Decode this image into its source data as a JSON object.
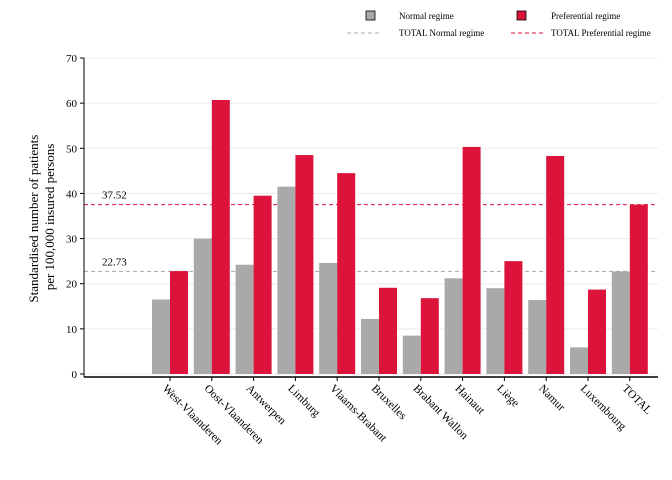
{
  "chart_data": {
    "type": "bar",
    "ylabel_lines": [
      "Standardised number of patients",
      "per 100,000 insured persons"
    ],
    "ylim": [
      0,
      70
    ],
    "yticks": [
      0,
      10,
      20,
      30,
      40,
      50,
      60,
      70
    ],
    "grid": true,
    "legend_placement": "top",
    "categories": [
      "West-Vlaanderen",
      "Oost-Vlaanderen",
      "Antwerpen",
      "Limburg",
      "Vlaams-Brabant",
      "Bruxelles",
      "Brabant Wallon",
      "Hainaut",
      "Liège",
      "Namur",
      "Luxembourg",
      "TOTAL"
    ],
    "series": [
      {
        "name": "Normal regime",
        "color": "#a9a9a9",
        "values": [
          16.5,
          30.0,
          24.2,
          41.5,
          24.6,
          12.2,
          8.5,
          21.2,
          19.0,
          16.4,
          5.9,
          22.73
        ]
      },
      {
        "name": "Preferential regime",
        "color": "#dc143c",
        "values": [
          22.8,
          60.7,
          39.5,
          48.5,
          44.5,
          19.1,
          16.8,
          50.3,
          25.0,
          48.3,
          18.7,
          37.52
        ]
      }
    ],
    "reference_lines": [
      {
        "name": "TOTAL Normal regime",
        "value": 22.73,
        "label": "22.73",
        "color": "#a9a9a9",
        "style": "dashed"
      },
      {
        "name": "TOTAL Preferential regime",
        "value": 37.52,
        "label": "37.52",
        "color": "#dc143c",
        "style": "dashed"
      }
    ]
  }
}
